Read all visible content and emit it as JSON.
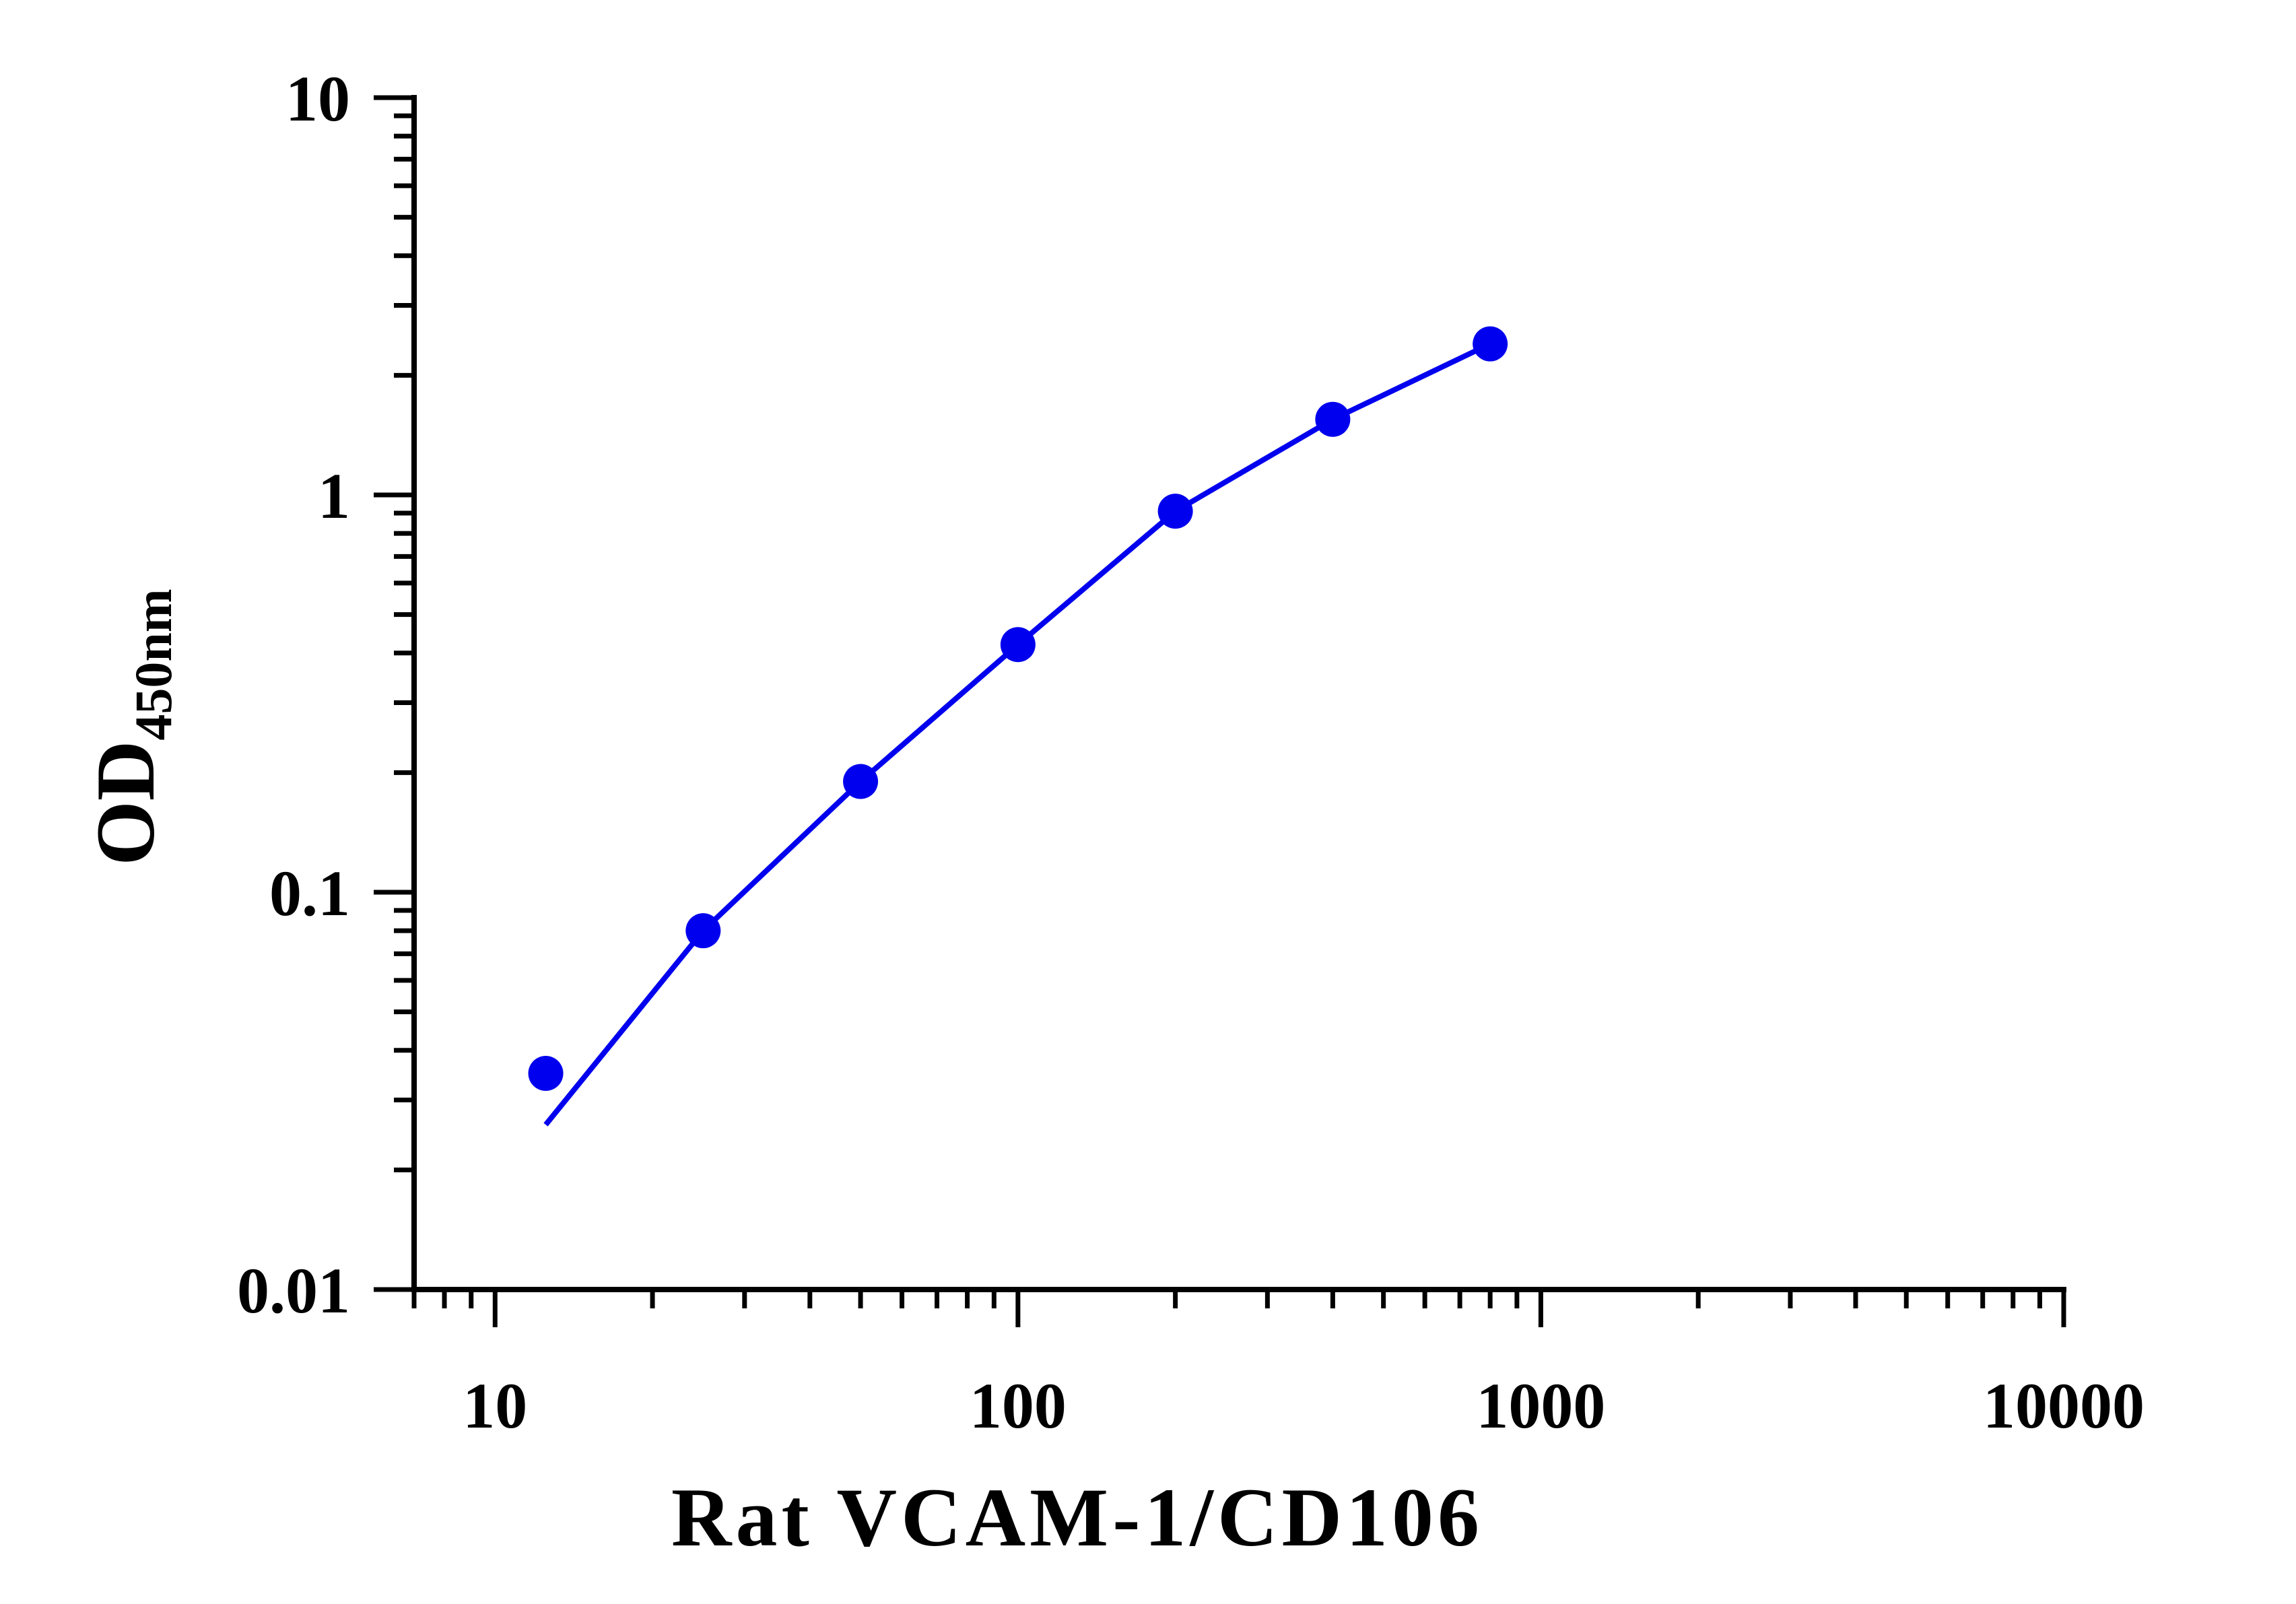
{
  "chart_data": {
    "type": "scatter",
    "xlabel": "Rat VCAM-1/CD106",
    "ylabel": "OD",
    "ylabel_subscript": "450nm",
    "x_scale": "log",
    "y_scale": "log",
    "xlim": [
      7,
      10000
    ],
    "ylim": [
      0.01,
      10
    ],
    "x_major_ticks": [
      10,
      100,
      1000,
      10000
    ],
    "x_tick_labels": [
      "10",
      "100",
      "1000",
      "10000"
    ],
    "y_major_ticks": [
      0.01,
      0.1,
      1,
      10
    ],
    "y_tick_labels": [
      "0.01",
      "0.1",
      "1",
      "10"
    ],
    "grid": false,
    "legend": "none",
    "color": "#0000ee",
    "series": [
      {
        "points": [
          {
            "x": 12.5,
            "y": 0.035
          },
          {
            "x": 25,
            "y": 0.08
          },
          {
            "x": 50,
            "y": 0.19
          },
          {
            "x": 100,
            "y": 0.42
          },
          {
            "x": 200,
            "y": 0.91
          },
          {
            "x": 400,
            "y": 1.55
          },
          {
            "x": 800,
            "y": 2.4
          }
        ],
        "fit_curve": [
          {
            "x": 12.5,
            "y": 0.026
          },
          {
            "x": 25,
            "y": 0.08
          },
          {
            "x": 50,
            "y": 0.19
          },
          {
            "x": 100,
            "y": 0.42
          },
          {
            "x": 200,
            "y": 0.91
          },
          {
            "x": 400,
            "y": 1.55
          },
          {
            "x": 800,
            "y": 2.4
          }
        ]
      }
    ]
  }
}
